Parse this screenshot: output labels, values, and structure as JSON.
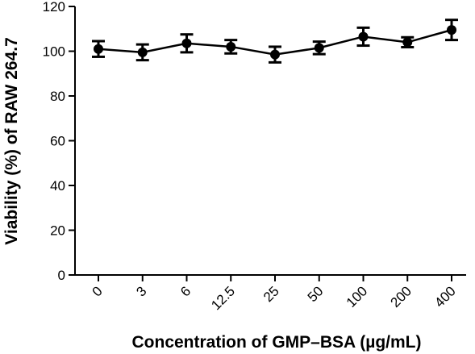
{
  "chart_data": {
    "type": "line",
    "title": "",
    "xlabel": "Concentration of GMP–BSA (µg/mL)",
    "ylabel": "Viability (%) of RAW 264.7",
    "categories": [
      "0",
      "3",
      "6",
      "12.5",
      "25",
      "50",
      "100",
      "200",
      "400"
    ],
    "y_ticks": [
      "0",
      "20",
      "40",
      "60",
      "80",
      "100",
      "120"
    ],
    "ylim": [
      0,
      120
    ],
    "grid": false,
    "legend": "none",
    "series": [
      {
        "values": [
          101,
          99.5,
          103.5,
          102,
          98.5,
          101.5,
          106.5,
          104,
          109.5
        ],
        "error": [
          3.5,
          3.5,
          4,
          3,
          3.5,
          2.8,
          4,
          2.2,
          4.5
        ],
        "color": "#000000"
      }
    ]
  }
}
